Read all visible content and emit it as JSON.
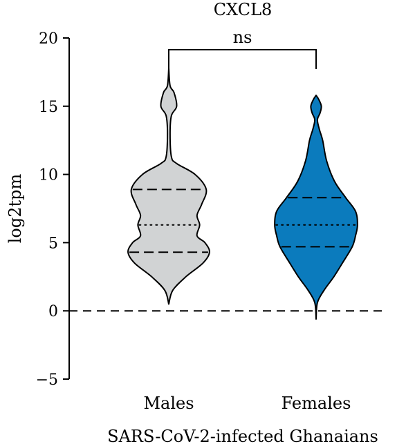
{
  "chart_data": {
    "type": "violin",
    "title": "CXCL8",
    "xlabel": "SARS-CoV-2-infected Ghanaians",
    "ylabel": "log2tpm",
    "ylim": [
      -5,
      20
    ],
    "yticks": [
      -5,
      0,
      5,
      10,
      15,
      20
    ],
    "ytick_labels": [
      "−5",
      "0",
      "5",
      "10",
      "15",
      "20"
    ],
    "categories": [
      "Males",
      "Females"
    ],
    "reference_line": {
      "y": 0,
      "style": "dashed"
    },
    "grid": false,
    "significance": {
      "between": [
        "Males",
        "Females"
      ],
      "label": "ns"
    },
    "series": [
      {
        "category": "Males",
        "color": "#d1d3d4",
        "min": 0.5,
        "max": 17.8,
        "q1": 4.3,
        "median": 6.3,
        "q3": 8.9,
        "density_profile": [
          [
            0.5,
            0.0
          ],
          [
            1.5,
            0.06
          ],
          [
            2.5,
            0.26
          ],
          [
            3.5,
            0.52
          ],
          [
            4.3,
            0.62
          ],
          [
            5.0,
            0.55
          ],
          [
            5.5,
            0.43
          ],
          [
            6.3,
            0.47
          ],
          [
            7.0,
            0.43
          ],
          [
            7.8,
            0.5
          ],
          [
            8.9,
            0.57
          ],
          [
            10.0,
            0.4
          ],
          [
            10.8,
            0.12
          ],
          [
            11.3,
            0.04
          ],
          [
            13.0,
            0.02
          ],
          [
            14.3,
            0.04
          ],
          [
            15.0,
            0.12
          ],
          [
            16.0,
            0.08
          ],
          [
            16.5,
            0.02
          ],
          [
            17.8,
            0.0
          ]
        ]
      },
      {
        "category": "Females",
        "color": "#0b7bbd",
        "min": -0.6,
        "max": 15.8,
        "q1": 4.7,
        "median": 6.3,
        "q3": 8.3,
        "density_profile": [
          [
            -0.6,
            0.0
          ],
          [
            0.6,
            0.02
          ],
          [
            1.5,
            0.12
          ],
          [
            2.5,
            0.27
          ],
          [
            3.5,
            0.4
          ],
          [
            4.7,
            0.55
          ],
          [
            5.5,
            0.6
          ],
          [
            6.3,
            0.63
          ],
          [
            7.3,
            0.6
          ],
          [
            8.3,
            0.45
          ],
          [
            9.5,
            0.28
          ],
          [
            11.0,
            0.16
          ],
          [
            12.5,
            0.1
          ],
          [
            13.3,
            0.05
          ],
          [
            14.0,
            0.02
          ],
          [
            14.5,
            0.06
          ],
          [
            15.0,
            0.08
          ],
          [
            15.5,
            0.04
          ],
          [
            15.8,
            0.0
          ]
        ]
      }
    ]
  }
}
